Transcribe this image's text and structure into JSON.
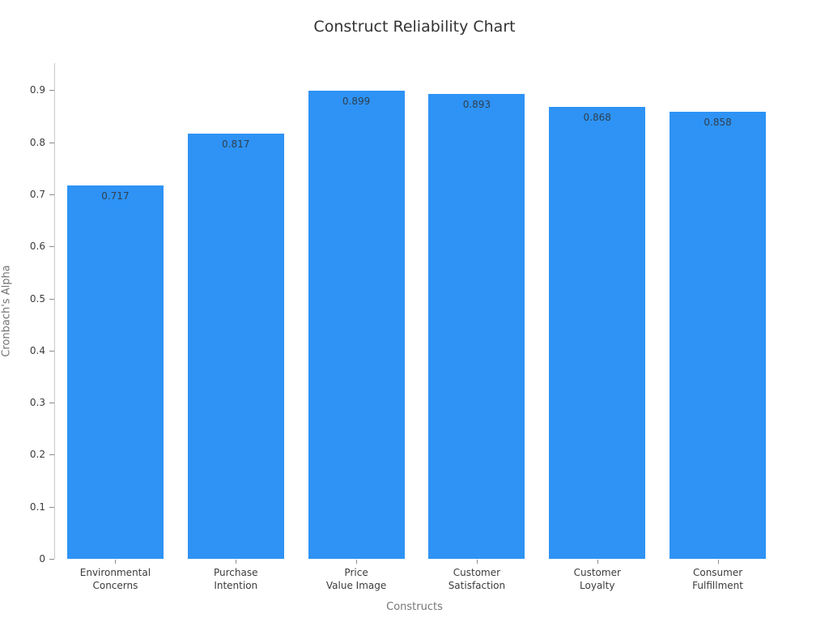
{
  "chart_data": {
    "type": "bar",
    "title": "Construct Reliability Chart",
    "xlabel": "Constructs",
    "ylabel": "Cronbach's Alpha",
    "categories": [
      "Environmental\nConcerns",
      "Purchase\nIntention",
      "Price\nValue Image",
      "Customer\nSatisfaction",
      "Customer\nLoyalty",
      "Consumer\nFulfillment"
    ],
    "values": [
      0.717,
      0.817,
      0.899,
      0.893,
      0.868,
      0.858
    ],
    "value_labels": [
      "0.717",
      "0.817",
      "0.899",
      "0.893",
      "0.868",
      "0.858"
    ],
    "yticks": [
      0,
      0.1,
      0.2,
      0.3,
      0.4,
      0.5,
      0.6,
      0.7,
      0.8,
      0.9
    ],
    "ytick_labels": [
      "0",
      "0.1",
      "0.2",
      "0.3",
      "0.4",
      "0.5",
      "0.6",
      "0.7",
      "0.8",
      "0.9"
    ],
    "ylim": [
      0,
      0.952
    ],
    "grid": false,
    "legend_position": "none",
    "colors": {
      "bar": "#2e93f5",
      "axis_line": "#c9c9c9",
      "tick": "#8c8c8c",
      "tick_label": "#3b3b3b",
      "axis_title": "#757575",
      "title": "#333333",
      "value_label": "#2e3f4f",
      "background": "#ffffff"
    }
  }
}
